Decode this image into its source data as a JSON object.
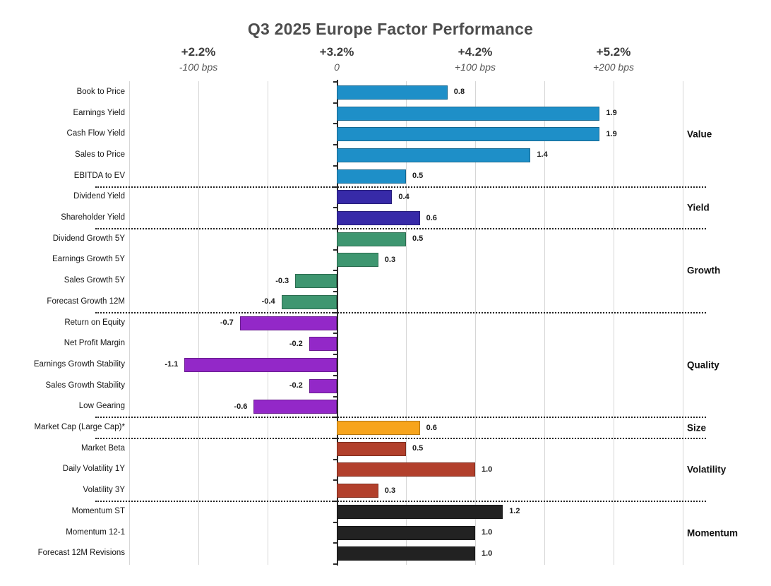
{
  "title": "Q3 2025 Europe Factor Performance",
  "chart_data": {
    "type": "bar",
    "orientation": "horizontal",
    "title": "Q3 2025 Europe Factor Performance",
    "value_unit": "percent (top) / basis points (bottom)",
    "x_axis": {
      "ticks": [
        {
          "pct": "+2.2%",
          "bps": "-100 bps",
          "value": -1.0
        },
        {
          "pct": "+3.2%",
          "bps": "0",
          "value": 0.0
        },
        {
          "pct": "+4.2%",
          "bps": "+100 bps",
          "value": 1.0
        },
        {
          "pct": "+5.2%",
          "bps": "+200 bps",
          "value": 2.0
        }
      ],
      "range": [
        -1.5,
        2.5
      ],
      "gridline_step": 0.5,
      "grid": true
    },
    "legend_position": "right-group-labels",
    "groups": [
      {
        "name": "Value",
        "color": "#1e8fc8",
        "factors": [
          {
            "label": "Book to Price",
            "value": 0.8
          },
          {
            "label": "Earnings Yield",
            "value": 1.9
          },
          {
            "label": "Cash Flow Yield",
            "value": 1.9
          },
          {
            "label": "Sales to Price",
            "value": 1.4
          },
          {
            "label": "EBITDA to EV",
            "value": 0.5
          }
        ]
      },
      {
        "name": "Yield",
        "color": "#372aa8",
        "factors": [
          {
            "label": "Dividend Yield",
            "value": 0.4
          },
          {
            "label": "Shareholder Yield",
            "value": 0.6
          }
        ]
      },
      {
        "name": "Growth",
        "color": "#3e9670",
        "factors": [
          {
            "label": "Dividend Growth 5Y",
            "value": 0.5
          },
          {
            "label": "Earnings Growth 5Y",
            "value": 0.3
          },
          {
            "label": "Sales Growth 5Y",
            "value": -0.3
          },
          {
            "label": "Forecast Growth 12M",
            "value": -0.4
          }
        ]
      },
      {
        "name": "Quality",
        "color": "#9328c8",
        "factors": [
          {
            "label": "Return on Equity",
            "value": -0.7
          },
          {
            "label": "Net Profit Margin",
            "value": -0.2
          },
          {
            "label": "Earnings Growth Stability",
            "value": -1.1
          },
          {
            "label": "Sales Growth Stability",
            "value": -0.2
          },
          {
            "label": "Low Gearing",
            "value": -0.6
          }
        ]
      },
      {
        "name": "Size",
        "color": "#f7a41c",
        "factors": [
          {
            "label": "Market Cap (Large Cap)*",
            "value": 0.6
          }
        ]
      },
      {
        "name": "Volatility",
        "color": "#b2402c",
        "factors": [
          {
            "label": "Market Beta",
            "value": 0.5
          },
          {
            "label": "Daily Volatility 1Y",
            "value": 1.0
          },
          {
            "label": "Volatility 3Y",
            "value": 0.3
          }
        ]
      },
      {
        "name": "Momentum",
        "color": "#222222",
        "factors": [
          {
            "label": "Momentum ST",
            "value": 1.2
          },
          {
            "label": "Momentum 12-1",
            "value": 1.0
          },
          {
            "label": "Forecast 12M Revisions",
            "value": 1.0
          }
        ]
      }
    ]
  }
}
